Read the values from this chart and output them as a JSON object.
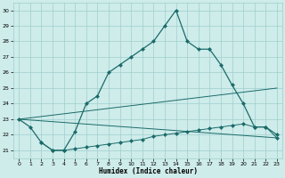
{
  "xlabel": "Humidex (Indice chaleur)",
  "bg_color": "#ceecea",
  "grid_color": "#9ecfcc",
  "line_color": "#1a6b6a",
  "xlim": [
    -0.5,
    23.5
  ],
  "ylim": [
    20.5,
    30.5
  ],
  "yticks": [
    21,
    22,
    23,
    24,
    25,
    26,
    27,
    28,
    29,
    30
  ],
  "xticks": [
    0,
    1,
    2,
    3,
    4,
    5,
    6,
    7,
    8,
    9,
    10,
    11,
    12,
    13,
    14,
    15,
    16,
    17,
    18,
    19,
    20,
    21,
    22,
    23
  ],
  "line1_x": [
    0,
    1,
    2,
    3,
    4,
    5,
    6,
    7,
    8,
    9,
    10,
    11,
    12,
    13,
    14,
    15,
    16,
    17,
    18,
    19,
    20,
    21,
    22,
    23
  ],
  "line1_y": [
    23.0,
    22.5,
    21.5,
    21.0,
    21.0,
    22.2,
    24.0,
    24.5,
    26.0,
    26.5,
    27.0,
    27.5,
    28.0,
    29.0,
    30.0,
    28.0,
    27.5,
    27.5,
    26.5,
    25.2,
    24.0,
    22.5,
    22.5,
    22.0
  ],
  "line2_x": [
    2,
    3,
    4,
    5,
    6,
    7,
    8,
    9,
    10,
    11,
    12,
    13,
    14,
    15,
    16,
    17,
    18,
    19,
    20,
    21,
    22,
    23
  ],
  "line2_y": [
    21.5,
    21.0,
    21.0,
    21.1,
    21.2,
    21.3,
    21.4,
    21.5,
    21.6,
    21.7,
    21.9,
    22.0,
    22.1,
    22.2,
    22.3,
    22.4,
    22.5,
    22.6,
    22.7,
    22.5,
    22.5,
    21.8
  ],
  "line3_x": [
    0,
    23
  ],
  "line3_y": [
    23.0,
    25.0
  ],
  "line4_x": [
    0,
    23
  ],
  "line4_y": [
    23.0,
    21.8
  ]
}
